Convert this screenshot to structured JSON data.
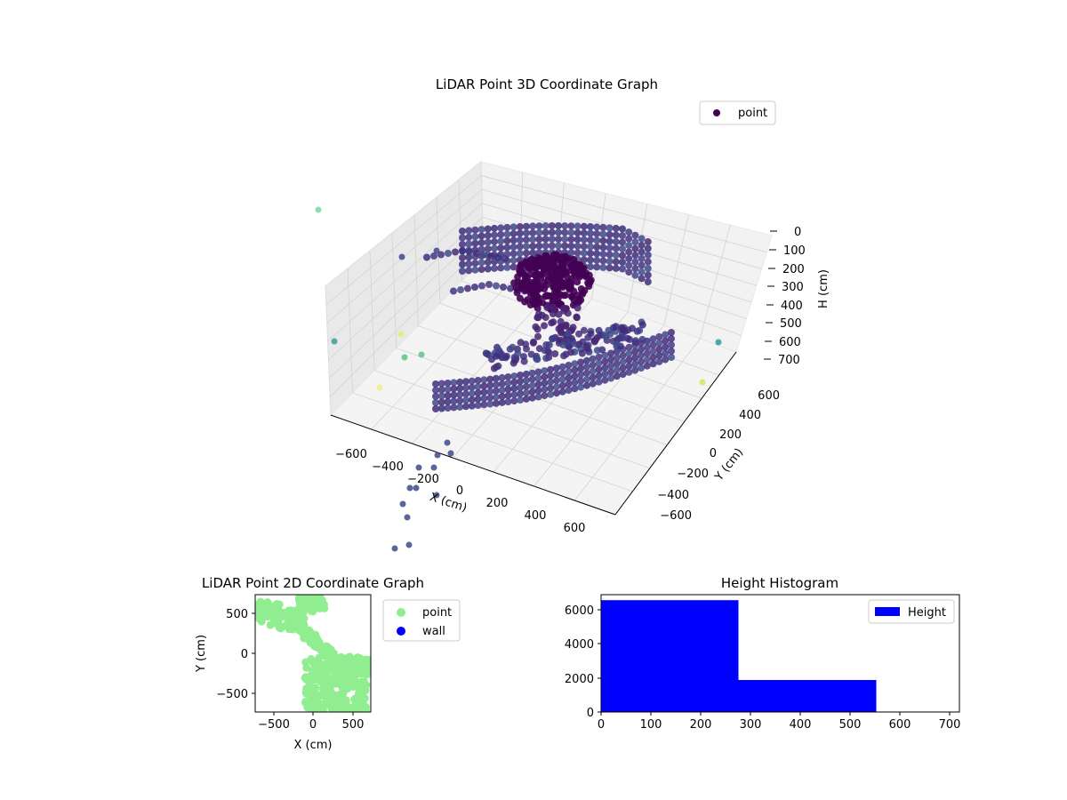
{
  "chart_data": [
    {
      "type": "scatter",
      "projection": "3d",
      "title": "LiDAR Point 3D Coordinate Graph",
      "xlabel": "X (cm)",
      "ylabel": "Y (cm)",
      "zlabel": "H (cm)",
      "xticks": [
        -600,
        -400,
        -200,
        0,
        200,
        400,
        600
      ],
      "yticks": [
        -600,
        -400,
        -200,
        0,
        200,
        400,
        600
      ],
      "zticks": [
        0,
        100,
        200,
        300,
        400,
        500,
        600,
        700
      ],
      "xlim": [
        -700,
        700
      ],
      "ylim": [
        -700,
        700
      ],
      "zlim": [
        0,
        700
      ],
      "z_axis_inverted": true,
      "colormap": "viridis",
      "grid": true,
      "legend": {
        "position": "upper-right",
        "entries": [
          {
            "label": "point",
            "color": "#440154"
          }
        ]
      }
    },
    {
      "type": "scatter",
      "title": "LiDAR Point 2D Coordinate Graph",
      "xlabel": "X (cm)",
      "ylabel": "Y (cm)",
      "xticks": [
        -500,
        0,
        500
      ],
      "yticks": [
        -500,
        0,
        500
      ],
      "xlim": [
        -730,
        730
      ],
      "ylim": [
        -730,
        730
      ],
      "grid": false,
      "series": [
        {
          "name": "point",
          "color": "#90ee90"
        },
        {
          "name": "wall",
          "color": "#0000ff"
        }
      ],
      "legend": {
        "position": "outside-right"
      }
    },
    {
      "type": "bar",
      "title": "Height Histogram",
      "xticks": [
        0,
        100,
        200,
        300,
        400,
        500,
        600,
        700
      ],
      "yticks": [
        0,
        2000,
        4000,
        6000
      ],
      "xlim": [
        0,
        720
      ],
      "ylim": [
        0,
        6850
      ],
      "grid": false,
      "bins": [
        {
          "from": 0,
          "to": 276,
          "count": 6530
        },
        {
          "from": 276,
          "to": 553,
          "count": 1870
        },
        {
          "from": 553,
          "to": 720,
          "count": 0
        }
      ],
      "series": [
        {
          "name": "Height",
          "color": "#0000ff"
        }
      ],
      "legend": {
        "position": "upper-right"
      }
    }
  ]
}
